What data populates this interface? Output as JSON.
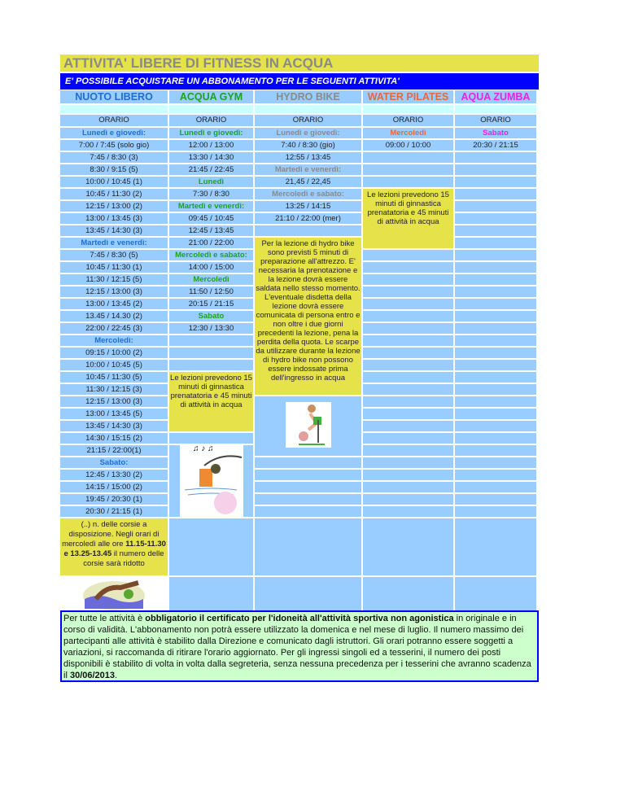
{
  "title": "ATTIVITA' LIBERE DI FITNESS IN ACQUA",
  "subtitle": "E' POSSIBILE ACQUISTARE UN ABBONAMENTO PER LE SEGUENTI ATTIVITA'",
  "colors": {
    "cell": "#99ccff",
    "note": "#e6e24a",
    "banner": "#0000ff",
    "footer": "#ccffcc"
  },
  "columns": [
    {
      "name": "NUOTO LIBERO",
      "color": "#1f6fd0",
      "orario": "ORARIO",
      "cells": [
        {
          "t": "Lunedì e giovedì:",
          "day": true
        },
        {
          "t": "7:00 / 7:45 (solo gio)"
        },
        {
          "t": "7:45 / 8:30 (3)"
        },
        {
          "t": "8:30 / 9:15 (5)"
        },
        {
          "t": "10:00 / 10:45 (1)"
        },
        {
          "t": "10:45 / 11:30 (2)"
        },
        {
          "t": "12:15 / 13:00 (2)"
        },
        {
          "t": "13:00 / 13:45 (3)"
        },
        {
          "t": "13:45 / 14:30 (3)"
        },
        {
          "t": "Martedì e venerdì:",
          "day": true
        },
        {
          "t": "7:45 / 8:30 (5)"
        },
        {
          "t": "10:45 / 11:30 (1)"
        },
        {
          "t": "11:30 / 12:15 (5)"
        },
        {
          "t": "12:15 / 13:00 (3)"
        },
        {
          "t": "13:00 / 13:45 (2)"
        },
        {
          "t": "13.45 / 14.30 (2)"
        },
        {
          "t": "22:00 / 22:45 (3)"
        },
        {
          "t": "Mercoledì:",
          "day": true
        },
        {
          "t": "09:15 / 10:00 (2)"
        },
        {
          "t": "10:00 / 10:45 (5)"
        },
        {
          "t": "10:45 / 11:30 (5)"
        },
        {
          "t": "11:30 / 12:15 (3)"
        },
        {
          "t": "12:15 / 13:00 (3)"
        },
        {
          "t": "13:00 / 13:45 (5)"
        },
        {
          "t": "13:45 / 14:30 (3)"
        },
        {
          "t": "14:30 / 15:15 (2)"
        },
        {
          "t": "21:15 / 22:00(1)"
        },
        {
          "t": "Sabato:",
          "day": true
        },
        {
          "t": "12:45 / 13:30 (2)"
        },
        {
          "t": "14:15 / 15:00 (2)"
        },
        {
          "t": "19:45 / 20:30 (1)"
        },
        {
          "t": "20:30 / 21:15 (1)"
        },
        {
          "note": true,
          "span": 1,
          "t": "(..) n. delle corsie a disposizione. Negli orari di mercoledì alle ore ",
          "b": "11.15-11.30 e 13.25-13.45",
          "t2": " il numero delle corsie sarà ridotto"
        },
        {
          "img": "swimmer-image",
          "span": 1
        }
      ]
    },
    {
      "name": "ACQUA GYM",
      "color": "#1aa51a",
      "orario": "ORARIO",
      "cells": [
        {
          "t": "Lunedì e giovedì:",
          "day": true
        },
        {
          "t": "12:00 / 13:00"
        },
        {
          "t": "13:30 / 14:30"
        },
        {
          "t": "21:45 / 22:45"
        },
        {
          "t": "Lunedì",
          "day": true
        },
        {
          "t": "7:30 / 8:30"
        },
        {
          "t": "Martedì e venerdì:",
          "day": true
        },
        {
          "t": "09:45 / 10:45"
        },
        {
          "t": "12:45 / 13:45"
        },
        {
          "t": "21:00 / 22:00"
        },
        {
          "t": "Mercoledì e sabato:",
          "day": true
        },
        {
          "t": "14:00 / 15:00"
        },
        {
          "t": "Mercoledì",
          "day": true
        },
        {
          "t": "11:50 / 12:50"
        },
        {
          "t": "20:15 / 21:15"
        },
        {
          "t": "Sabato",
          "day": true
        },
        {
          "t": "12:30 / 13:30"
        },
        {
          "t": ""
        },
        {
          "t": ""
        },
        {
          "t": ""
        },
        {
          "note": true,
          "span": 5,
          "t": "Le lezioni prevedono 15 minuti di ginnastica prenatatoria e 45 minuti di attività in acqua"
        },
        {
          "t": ""
        },
        {
          "img": "aqua-gym-image",
          "span": 6
        },
        {
          "t": ""
        },
        {
          "t": ""
        }
      ]
    },
    {
      "name": "HYDRO BIKE",
      "color": "#8a8a8a",
      "orario": "ORARIO",
      "cells": [
        {
          "t": "Lunedì e giovedì:",
          "day": true
        },
        {
          "t": "7:40 / 8:30 (gio)"
        },
        {
          "t": "12:55 / 13:45"
        },
        {
          "t": "Martedì e venerdì:",
          "day": true
        },
        {
          "t": "21,45 / 22,45"
        },
        {
          "t": "Mercoledì e sabato:",
          "day": true
        },
        {
          "t": "13:25 / 14:15"
        },
        {
          "t": "21:10 / 22:00 (mer)"
        },
        {
          "t": ""
        },
        {
          "note": true,
          "span": 13,
          "t": "Per la lezione di hydro bike sono previsti 5 minuti di preparazione all'attrezzo. E' necessaria la prenotazione e la lezione dovrà essere saldata nello stesso momento. L'eventuale disdetta della lezione dovrà essere comunicata di persona entro e non oltre i due giorni precedenti la lezione, pena la perdita della quota. Le scarpe da utilizzare durante la lezione di hydro bike non possono essere indossate prima dell'ingresso in acqua"
        },
        {
          "img": "hydro-bike-image",
          "span": 5
        },
        {
          "t": ""
        },
        {
          "t": ""
        },
        {
          "t": ""
        },
        {
          "t": ""
        },
        {
          "t": ""
        },
        {
          "t": "",
          "span": 1
        },
        {
          "t": "",
          "span": 1
        }
      ]
    },
    {
      "name": "WATER PILATES",
      "color": "#e06a40",
      "orario": "ORARIO",
      "cells": [
        {
          "t": "Mercoledì",
          "day": true
        },
        {
          "t": "09:00 / 10:00"
        },
        {
          "t": ""
        },
        {
          "t": ""
        },
        {
          "t": ""
        },
        {
          "note": true,
          "span": 5,
          "t": "Le lezioni prevedono 15 minuti di ginnastica prenatatoria e 45 minuti di attività in acqua"
        },
        {
          "t": ""
        },
        {
          "t": ""
        },
        {
          "t": ""
        },
        {
          "t": ""
        },
        {
          "t": ""
        },
        {
          "t": ""
        },
        {
          "t": ""
        },
        {
          "t": ""
        },
        {
          "t": ""
        },
        {
          "t": ""
        },
        {
          "t": ""
        },
        {
          "t": ""
        },
        {
          "t": ""
        },
        {
          "t": ""
        },
        {
          "t": ""
        },
        {
          "t": ""
        },
        {
          "t": ""
        },
        {
          "t": ""
        },
        {
          "t": ""
        },
        {
          "t": ""
        },
        {
          "t": ""
        },
        {
          "t": ""
        },
        {
          "t": ""
        },
        {
          "t": ""
        },
        {
          "t": "",
          "span": 1
        },
        {
          "t": "",
          "span": 1
        }
      ]
    },
    {
      "name": "AQUA ZUMBA",
      "color": "#f020e0",
      "orario": "ORARIO",
      "cells": [
        {
          "t": "Sabato",
          "day": true
        },
        {
          "t": "20:30 / 21:15"
        },
        {
          "t": ""
        },
        {
          "t": ""
        },
        {
          "t": ""
        },
        {
          "t": ""
        },
        {
          "t": ""
        },
        {
          "t": ""
        },
        {
          "t": ""
        },
        {
          "t": ""
        },
        {
          "t": ""
        },
        {
          "t": ""
        },
        {
          "t": ""
        },
        {
          "t": ""
        },
        {
          "t": ""
        },
        {
          "t": ""
        },
        {
          "t": ""
        },
        {
          "t": ""
        },
        {
          "t": ""
        },
        {
          "t": ""
        },
        {
          "t": ""
        },
        {
          "t": ""
        },
        {
          "t": ""
        },
        {
          "t": ""
        },
        {
          "t": ""
        },
        {
          "t": ""
        },
        {
          "t": ""
        },
        {
          "t": ""
        },
        {
          "t": ""
        },
        {
          "t": ""
        },
        {
          "t": ""
        },
        {
          "t": ""
        },
        {
          "t": "",
          "span": 1
        },
        {
          "t": "",
          "span": 1
        }
      ]
    }
  ],
  "footer": {
    "p1": "Per tutte le attività è ",
    "b1": "obbligatorio il certificato per l'idoneità all'attività sportiva non agonistica",
    "p2": " in originale e in corso di validità. L'abbonamento non potrà essere utilizzato la domenica e nel mese di luglio. Il numero massimo dei partecipanti alle attività è stabilito dalla Direzione e comunicato dagli istruttori. Gli orari potranno essere soggetti a variazioni, si raccomanda di ritirare l'orario aggiornato. Per gli ingressi singoli ed a tesserini, il numero dei posti disponibili è stabilito di volta in volta dalla segreteria, senza nessuna precedenza per i tesserini che avranno scadenza il ",
    "b2": "30/06/2013",
    "p3": "."
  }
}
